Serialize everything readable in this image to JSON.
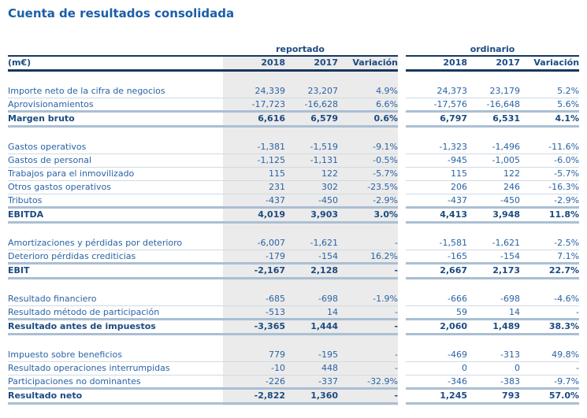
{
  "title": "Cuenta de resultados consolidada",
  "colors": {
    "title_blue": "#1b5ea9",
    "text_blue": "#2a63a6",
    "text_dark": "#1c4b82",
    "line_navy": "#17375e",
    "band_blue": "#aabfd3",
    "thin_line": "#d0dae4",
    "gray_bg": "#ebebeb",
    "page_bg": "#ffffff"
  },
  "table": {
    "unit_label": "(m€)",
    "groups": [
      {
        "label": "reportado"
      },
      {
        "label": "ordinario"
      }
    ],
    "column_headers": [
      "2018",
      "2017",
      "Variación"
    ],
    "rows": [
      {
        "type": "spacer"
      },
      {
        "type": "item",
        "label": "Importe neto de la cifra de negocios",
        "rep": [
          "24,339",
          "23,207",
          "4.9%"
        ],
        "ord": [
          "24,373",
          "23,179",
          "5.2%"
        ]
      },
      {
        "type": "item",
        "label": "Aprovisionamientos",
        "rep": [
          "-17,723",
          "-16,628",
          "6.6%"
        ],
        "ord": [
          "-17,576",
          "-16,648",
          "5.6%"
        ]
      },
      {
        "type": "total",
        "label": "Margen bruto",
        "rep": [
          "6,616",
          "6,579",
          "0.6%"
        ],
        "ord": [
          "6,797",
          "6,531",
          "4.1%"
        ]
      },
      {
        "type": "spacer"
      },
      {
        "type": "item",
        "label": "Gastos operativos",
        "rep": [
          "-1,381",
          "-1,519",
          "-9.1%"
        ],
        "ord": [
          "-1,323",
          "-1,496",
          "-11.6%"
        ]
      },
      {
        "type": "item",
        "label": "Gastos de personal",
        "rep": [
          "-1,125",
          "-1,131",
          "-0.5%"
        ],
        "ord": [
          "-945",
          "-1,005",
          "-6.0%"
        ]
      },
      {
        "type": "item",
        "label": "Trabajos para el inmovilizado",
        "rep": [
          "115",
          "122",
          "-5.7%"
        ],
        "ord": [
          "115",
          "122",
          "-5.7%"
        ]
      },
      {
        "type": "item",
        "label": "Otros gastos operativos",
        "rep": [
          "231",
          "302",
          "-23.5%"
        ],
        "ord": [
          "206",
          "246",
          "-16.3%"
        ]
      },
      {
        "type": "item",
        "label": "Tributos",
        "rep": [
          "-437",
          "-450",
          "-2.9%"
        ],
        "ord": [
          "-437",
          "-450",
          "-2.9%"
        ]
      },
      {
        "type": "total",
        "label": "EBITDA",
        "rep": [
          "4,019",
          "3,903",
          "3.0%"
        ],
        "ord": [
          "4,413",
          "3,948",
          "11.8%"
        ]
      },
      {
        "type": "spacer"
      },
      {
        "type": "item",
        "label": "Amortizaciones y pérdidas por deterioro",
        "rep": [
          "-6,007",
          "-1,621",
          "-"
        ],
        "ord": [
          "-1,581",
          "-1,621",
          "-2.5%"
        ]
      },
      {
        "type": "item",
        "label": "Deterioro pérdidas crediticias",
        "rep": [
          "-179",
          "-154",
          "16.2%"
        ],
        "ord": [
          "-165",
          "-154",
          "7.1%"
        ]
      },
      {
        "type": "total",
        "label": "EBIT",
        "rep": [
          "-2,167",
          "2,128",
          "-"
        ],
        "ord": [
          "2,667",
          "2,173",
          "22.7%"
        ]
      },
      {
        "type": "spacer"
      },
      {
        "type": "item",
        "label": "Resultado financiero",
        "rep": [
          "-685",
          "-698",
          "-1.9%"
        ],
        "ord": [
          "-666",
          "-698",
          "-4.6%"
        ]
      },
      {
        "type": "item",
        "label": "Resultado método de participación",
        "rep": [
          "-513",
          "14",
          "-"
        ],
        "ord": [
          "59",
          "14",
          "-"
        ]
      },
      {
        "type": "total",
        "label": "Resultado antes de impuestos",
        "rep": [
          "-3,365",
          "1,444",
          "-"
        ],
        "ord": [
          "2,060",
          "1,489",
          "38.3%"
        ]
      },
      {
        "type": "spacer"
      },
      {
        "type": "item",
        "label": "Impuesto sobre beneficios",
        "rep": [
          "779",
          "-195",
          "-"
        ],
        "ord": [
          "-469",
          "-313",
          "49.8%"
        ]
      },
      {
        "type": "item",
        "label": "Resultado operaciones interrumpidas",
        "rep": [
          "-10",
          "448",
          "-"
        ],
        "ord": [
          "0",
          "0",
          "-"
        ]
      },
      {
        "type": "item",
        "label": "Participaciones no dominantes",
        "rep": [
          "-226",
          "-337",
          "-32.9%"
        ],
        "ord": [
          "-346",
          "-383",
          "-9.7%"
        ]
      },
      {
        "type": "total",
        "label": "Resultado neto",
        "rep": [
          "-2,822",
          "1,360",
          "-"
        ],
        "ord": [
          "1,245",
          "793",
          "57.0%"
        ]
      }
    ]
  }
}
